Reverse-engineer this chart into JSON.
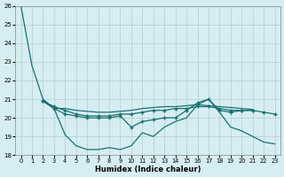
{
  "xlabel": "Humidex (Indice chaleur)",
  "background_color": "#d6eef2",
  "grid_color": "#b0cdd4",
  "line_color": "#1a7070",
  "xlim": [
    -0.5,
    23.5
  ],
  "ylim": [
    18,
    26
  ],
  "yticks": [
    18,
    19,
    20,
    21,
    22,
    23,
    24,
    25,
    26
  ],
  "xticks": [
    0,
    1,
    2,
    3,
    4,
    5,
    6,
    7,
    8,
    9,
    10,
    11,
    12,
    13,
    14,
    15,
    16,
    17,
    18,
    19,
    20,
    21,
    22,
    23
  ],
  "series": [
    {
      "x": [
        0,
        1,
        2,
        3,
        4,
        5,
        6,
        7,
        8,
        9,
        10,
        11,
        12,
        13,
        14,
        15,
        16,
        17,
        18,
        19,
        20,
        21,
        22,
        23
      ],
      "y": [
        26.0,
        22.8,
        21.0,
        20.5,
        19.1,
        18.5,
        18.3,
        18.3,
        18.4,
        18.3,
        18.5,
        19.2,
        19.0,
        19.5,
        19.8,
        20.0,
        20.7,
        21.0,
        20.3,
        19.5,
        19.3,
        19.0,
        18.7,
        18.6
      ],
      "marker": false,
      "linewidth": 0.9
    },
    {
      "x": [
        2,
        3,
        4,
        5,
        6,
        7,
        8,
        9,
        10,
        11,
        12,
        13,
        14,
        15,
        16,
        17,
        18,
        19,
        20,
        21
      ],
      "y": [
        20.9,
        20.5,
        20.2,
        20.1,
        20.0,
        20.0,
        20.0,
        20.1,
        19.5,
        19.8,
        19.9,
        20.0,
        20.0,
        20.4,
        20.8,
        21.0,
        20.4,
        20.3,
        20.4,
        20.4
      ],
      "marker": true,
      "linewidth": 0.9
    },
    {
      "x": [
        2,
        3,
        4,
        5,
        6,
        7,
        8,
        9,
        10,
        11,
        12,
        13,
        14,
        15,
        16,
        17,
        18,
        19,
        20,
        21,
        22,
        23
      ],
      "y": [
        20.9,
        20.6,
        20.4,
        20.2,
        20.1,
        20.1,
        20.1,
        20.2,
        20.2,
        20.3,
        20.4,
        20.4,
        20.5,
        20.5,
        20.6,
        20.6,
        20.5,
        20.4,
        20.4,
        20.4,
        20.3,
        20.2
      ],
      "marker": true,
      "linewidth": 0.9
    },
    {
      "x": [
        2,
        3,
        4,
        5,
        6,
        7,
        8,
        9,
        10,
        11,
        12,
        13,
        14,
        15,
        16,
        17,
        18,
        19,
        20,
        21
      ],
      "y": [
        20.9,
        20.5,
        20.5,
        20.4,
        20.35,
        20.3,
        20.3,
        20.35,
        20.4,
        20.5,
        20.55,
        20.6,
        20.6,
        20.65,
        20.7,
        20.65,
        20.6,
        20.55,
        20.5,
        20.45
      ],
      "marker": false,
      "linewidth": 0.9
    }
  ]
}
